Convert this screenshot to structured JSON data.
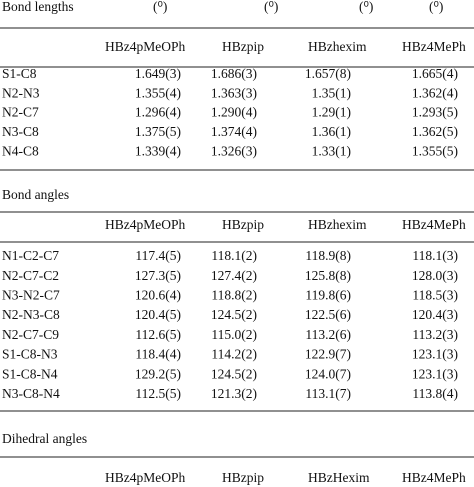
{
  "sections": [
    {
      "title": "Bond lengths",
      "units": [
        "(⁰)",
        "(⁰)",
        "(⁰)",
        "(⁰)"
      ],
      "columns": [
        "HBz4pMeOPh",
        "HBzpip",
        "HBzhexim",
        "HBz4MePh"
      ],
      "rows": [
        [
          "S1-C8",
          "1.649(3)",
          "1.686(3)",
          "1.657(8)",
          "1.665(4)"
        ],
        [
          "N2-N3",
          "1.355(4)",
          "1.363(3)",
          "1.35(1)",
          "1.362(4)"
        ],
        [
          "N2-C7",
          "1.296(4)",
          "1.290(4)",
          "1.29(1)",
          "1.293(5)"
        ],
        [
          "N3-C8",
          "1.375(5)",
          "1.374(4)",
          "1.36(1)",
          "1.362(5)"
        ],
        [
          "N4-C8",
          "1.339(4)",
          "1.326(3)",
          "1.33(1)",
          "1.355(5)"
        ]
      ]
    },
    {
      "title": "Bond angles",
      "columns": [
        "HBz4pMeOPh",
        "HBzpip",
        "HBzhexim",
        "HBz4MePh"
      ],
      "rows": [
        [
          "N1-C2-C7",
          "117.4(5)",
          "118.1(2)",
          "118.9(8)",
          "118.1(3)"
        ],
        [
          "N2-C7-C2",
          "127.3(5)",
          "127.4(2)",
          "125.8(8)",
          "128.0(3)"
        ],
        [
          "N3-N2-C7",
          "120.6(4)",
          "118.8(2)",
          "119.8(6)",
          "118.5(3)"
        ],
        [
          "N2-N3-C8",
          "120.4(5)",
          "124.5(2)",
          "122.5(6)",
          "120.4(3)"
        ],
        [
          "N2-C7-C9",
          "112.6(5)",
          "115.0(2)",
          "113.2(6)",
          "113.2(3)"
        ],
        [
          "S1-C8-N3",
          "118.4(4)",
          "114.2(2)",
          "122.9(7)",
          "123.1(3)"
        ],
        [
          "S1-C8-N4",
          "129.2(5)",
          "124.5(2)",
          "124.0(7)",
          "123.1(3)"
        ],
        [
          "N3-C8-N4",
          "112.5(5)",
          "121.3(2)",
          "113.1(7)",
          "113.8(4)"
        ]
      ]
    },
    {
      "title": "Dihedral angles",
      "columns": [
        "HBz4pMeOPh",
        "HBzpip",
        "HBzHexim",
        "HBz4MePh"
      ]
    }
  ]
}
